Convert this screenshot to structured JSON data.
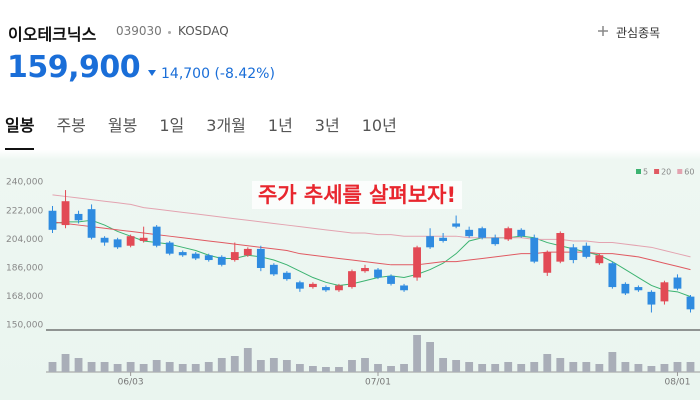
{
  "header": {
    "name": "이오테크닉스",
    "code": "039030",
    "market": "KOSDAQ",
    "watch": "관심종목",
    "price": "159,900",
    "change": "14,700",
    "change_pct": "(-8.42%)"
  },
  "tabs": [
    "일봉",
    "주봉",
    "월봉",
    "1일",
    "3개월",
    "1년",
    "3년",
    "10년"
  ],
  "chart_data": {
    "type": "candlestick",
    "annotation": "주가 추세를 살펴보자!",
    "categories": [
      null,
      null,
      null,
      null,
      null,
      null,
      "06/03",
      null,
      null,
      null,
      null,
      null,
      null,
      null,
      null,
      null,
      null,
      null,
      null,
      null,
      null,
      null,
      null,
      null,
      null,
      "07/01",
      null,
      null,
      null,
      null,
      null,
      null,
      null,
      null,
      null,
      null,
      null,
      null,
      null,
      null,
      null,
      null,
      null,
      null,
      null,
      null,
      null,
      null,
      "08/01",
      null
    ],
    "open": [
      222000,
      213000,
      220000,
      223000,
      205000,
      204000,
      200000,
      203000,
      212000,
      202000,
      196000,
      195000,
      194000,
      193000,
      191000,
      194000,
      198000,
      188000,
      183000,
      177000,
      174000,
      174000,
      172000,
      174000,
      184000,
      185000,
      181000,
      175000,
      180000,
      206000,
      205000,
      214000,
      210000,
      211000,
      205000,
      204000,
      210000,
      205000,
      183000,
      190000,
      199000,
      200000,
      189000,
      189000,
      176000,
      174000,
      171000,
      165000,
      180000,
      168000
    ],
    "high": [
      225000,
      235000,
      222000,
      226000,
      206000,
      205000,
      207000,
      212000,
      213000,
      203000,
      197000,
      196000,
      195000,
      194000,
      202000,
      199000,
      200000,
      189000,
      184000,
      178000,
      177000,
      175000,
      176000,
      185000,
      188000,
      186000,
      182000,
      176000,
      200000,
      211000,
      208000,
      219000,
      212000,
      212000,
      207000,
      212000,
      211000,
      207000,
      197000,
      209000,
      201000,
      202000,
      195000,
      190000,
      177000,
      175000,
      172000,
      178000,
      182000,
      169000
    ],
    "low": [
      208000,
      211000,
      214000,
      204000,
      200000,
      198000,
      199000,
      202000,
      199000,
      194000,
      193000,
      191000,
      190000,
      187000,
      190000,
      193000,
      184000,
      181000,
      178000,
      171000,
      173000,
      171000,
      171000,
      173000,
      183000,
      179000,
      175000,
      171000,
      178000,
      198000,
      202000,
      211000,
      205000,
      204000,
      200000,
      203000,
      205000,
      189000,
      181000,
      189000,
      189000,
      192000,
      188000,
      173000,
      169000,
      171000,
      158000,
      163000,
      172000,
      158000
    ],
    "close": [
      210000,
      228000,
      216000,
      205000,
      202000,
      199000,
      206000,
      205000,
      200000,
      195000,
      194000,
      192000,
      191000,
      188000,
      196000,
      198000,
      186000,
      182000,
      179000,
      173000,
      176000,
      172000,
      175000,
      184000,
      186000,
      180000,
      176000,
      172000,
      199000,
      199000,
      203000,
      212000,
      206000,
      205000,
      201000,
      211000,
      206000,
      190000,
      196000,
      208000,
      191000,
      193000,
      194000,
      174000,
      170000,
      172000,
      163000,
      177000,
      173000,
      160000
    ],
    "up_color": "#e24a55",
    "down_color": "#2f8be0",
    "volume": {
      "color": "#a9aeb8",
      "vlim": [
        0,
        40
      ],
      "values": [
        10,
        18,
        14,
        10,
        10,
        8,
        10,
        8,
        12,
        10,
        8,
        8,
        10,
        14,
        16,
        24,
        12,
        14,
        12,
        8,
        6,
        5,
        5,
        12,
        14,
        8,
        6,
        8,
        37,
        30,
        14,
        12,
        10,
        8,
        8,
        10,
        8,
        10,
        18,
        14,
        10,
        10,
        8,
        20,
        10,
        8,
        6,
        8,
        10,
        10
      ]
    },
    "series": [
      {
        "name": "5",
        "color": "#3cb371",
        "values": [
          214000,
          215000,
          215000,
          216000,
          213000,
          209000,
          206000,
          203000,
          202000,
          201000,
          199000,
          197000,
          194000,
          192000,
          192000,
          194000,
          193000,
          191000,
          188000,
          184000,
          180000,
          177000,
          175000,
          176000,
          178000,
          180000,
          181000,
          180000,
          182000,
          185000,
          189000,
          195000,
          203000,
          205000,
          205000,
          205000,
          206000,
          205000,
          202000,
          200000,
          198000,
          196000,
          194000,
          190000,
          185000,
          180000,
          175000,
          172000,
          171000,
          168000
        ]
      },
      {
        "name": "20",
        "color": "#e05a62",
        "values": [
          215000,
          214000,
          213000,
          212000,
          211000,
          210000,
          209000,
          208000,
          207000,
          206000,
          205000,
          204000,
          203000,
          202000,
          201000,
          200000,
          199000,
          198000,
          197000,
          195000,
          194000,
          193000,
          192000,
          191000,
          190000,
          189000,
          188000,
          188000,
          188000,
          189000,
          190000,
          190000,
          191000,
          192000,
          193000,
          194000,
          195000,
          195000,
          196000,
          196000,
          196000,
          196000,
          195000,
          195000,
          194000,
          193000,
          191000,
          189000,
          187000,
          185000
        ]
      },
      {
        "name": "60",
        "color": "#e3a3b0",
        "values": [
          232000,
          231000,
          230000,
          229000,
          228000,
          227000,
          226000,
          224000,
          223000,
          222000,
          221000,
          220000,
          219000,
          218000,
          217000,
          216000,
          215000,
          214000,
          213000,
          212000,
          211000,
          210000,
          209000,
          208000,
          208000,
          207000,
          207000,
          206000,
          206000,
          206000,
          206000,
          206000,
          205000,
          205000,
          205000,
          205000,
          205000,
          204000,
          204000,
          204000,
          203000,
          203000,
          202000,
          202000,
          201000,
          200000,
          199000,
          197000,
          195000,
          193000
        ]
      }
    ],
    "ylim": [
      147000,
      247000
    ],
    "yticks": [
      {
        "value": 150000,
        "label": "150,000"
      },
      {
        "value": 168000,
        "label": "168,000"
      },
      {
        "value": 186000,
        "label": "186,000"
      },
      {
        "value": 204000,
        "label": "204,000"
      },
      {
        "value": 222000,
        "label": "222,000"
      },
      {
        "value": 240000,
        "label": "240,000"
      }
    ],
    "grid": false,
    "legend": "top-right"
  }
}
